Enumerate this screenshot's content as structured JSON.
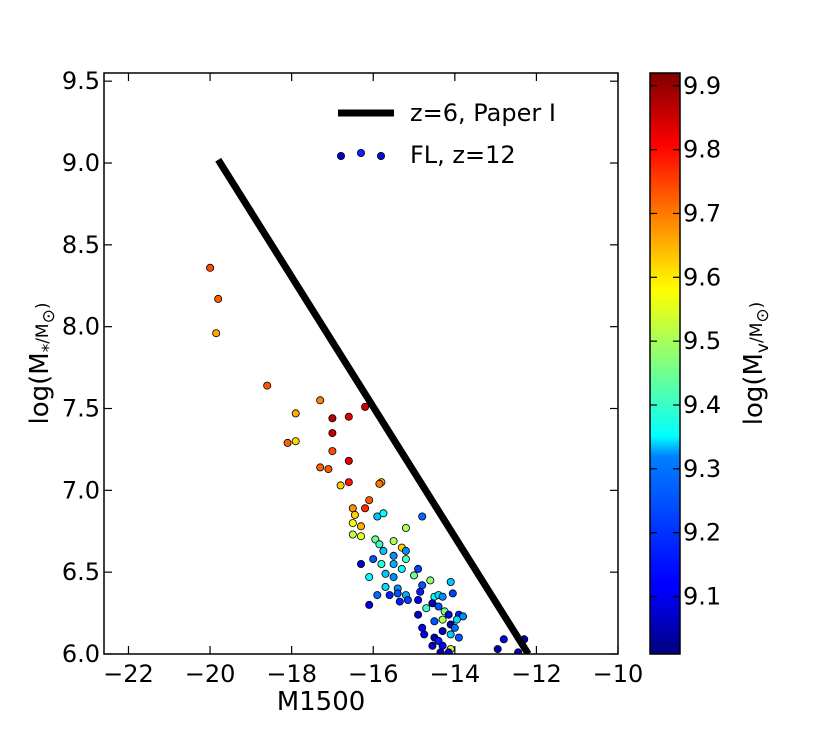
{
  "chart_data": {
    "type": "scatter",
    "xlabel": "M1500",
    "ylabel": "log(M",
    "ylabel_sub": "*",
    "ylabel_rest": "/M",
    "ylabel_sub2": "⊙",
    "ylabel_end": ")",
    "xlim": [
      -22.6,
      -10
    ],
    "ylim": [
      6.0,
      9.55
    ],
    "xticks": [
      -22,
      -20,
      -18,
      -16,
      -14,
      -12,
      -10
    ],
    "xtick_labels": [
      "−22",
      "−20",
      "−18",
      "−16",
      "−14",
      "−12",
      "−10"
    ],
    "yticks": [
      6.0,
      6.5,
      7.0,
      7.5,
      8.0,
      8.5,
      9.0,
      9.5
    ],
    "ytick_labels": [
      "6.0",
      "6.5",
      "7.0",
      "7.5",
      "8.0",
      "8.5",
      "9.0",
      "9.5"
    ],
    "line_series": {
      "name": "z=6, Paper I",
      "color": "#000000",
      "x": [
        -19.8,
        -12.2
      ],
      "y": [
        9.02,
        6.0
      ]
    },
    "scatter_series": {
      "name": "FL, z=12",
      "points": [
        [
          -20.0,
          8.36,
          9.74
        ],
        [
          -19.8,
          8.17,
          9.72
        ],
        [
          -19.85,
          7.96,
          9.66
        ],
        [
          -18.6,
          7.64,
          9.73
        ],
        [
          -17.9,
          7.47,
          9.65
        ],
        [
          -17.3,
          7.55,
          9.69
        ],
        [
          -18.1,
          7.29,
          9.72
        ],
        [
          -17.9,
          7.3,
          9.62
        ],
        [
          -17.0,
          7.44,
          9.87
        ],
        [
          -16.6,
          7.45,
          9.83
        ],
        [
          -16.2,
          7.51,
          9.85
        ],
        [
          -17.0,
          7.35,
          9.86
        ],
        [
          -17.0,
          7.24,
          9.74
        ],
        [
          -17.3,
          7.14,
          9.72
        ],
        [
          -17.1,
          7.13,
          9.73
        ],
        [
          -16.6,
          7.18,
          9.83
        ],
        [
          -16.6,
          7.05,
          9.79
        ],
        [
          -16.8,
          7.03,
          9.62
        ],
        [
          -15.8,
          7.05,
          9.66
        ],
        [
          -15.85,
          7.04,
          9.7
        ],
        [
          -16.1,
          6.94,
          9.73
        ],
        [
          -16.2,
          6.89,
          9.77
        ],
        [
          -16.5,
          6.89,
          9.68
        ],
        [
          -16.45,
          6.85,
          9.62
        ],
        [
          -16.5,
          6.8,
          9.58
        ],
        [
          -15.9,
          6.84,
          9.3
        ],
        [
          -15.75,
          6.86,
          9.35
        ],
        [
          -14.8,
          6.84,
          9.22
        ],
        [
          -15.2,
          6.77,
          9.5
        ],
        [
          -16.3,
          6.78,
          9.65
        ],
        [
          -16.5,
          6.73,
          9.52
        ],
        [
          -16.3,
          6.72,
          9.55
        ],
        [
          -15.95,
          6.7,
          9.45
        ],
        [
          -15.5,
          6.69,
          9.5
        ],
        [
          -15.85,
          6.67,
          9.4
        ],
        [
          -15.75,
          6.63,
          9.3
        ],
        [
          -15.3,
          6.65,
          9.62
        ],
        [
          -15.2,
          6.63,
          9.25
        ],
        [
          -16.3,
          6.55,
          9.08
        ],
        [
          -16.0,
          6.58,
          9.2
        ],
        [
          -15.8,
          6.55,
          9.38
        ],
        [
          -15.5,
          6.6,
          9.25
        ],
        [
          -15.2,
          6.58,
          9.42
        ],
        [
          -15.5,
          6.55,
          9.28
        ],
        [
          -15.3,
          6.52,
          9.35
        ],
        [
          -14.9,
          6.52,
          9.18
        ],
        [
          -15.7,
          6.49,
          9.3
        ],
        [
          -16.1,
          6.47,
          9.35
        ],
        [
          -15.5,
          6.47,
          9.25
        ],
        [
          -15.0,
          6.48,
          9.45
        ],
        [
          -14.6,
          6.45,
          9.48
        ],
        [
          -14.8,
          6.42,
          9.2
        ],
        [
          -15.7,
          6.41,
          9.32
        ],
        [
          -15.4,
          6.4,
          9.25
        ],
        [
          -14.1,
          6.44,
          9.3
        ],
        [
          -15.9,
          6.36,
          9.22
        ],
        [
          -15.6,
          6.36,
          9.15
        ],
        [
          -15.4,
          6.37,
          9.2
        ],
        [
          -15.2,
          6.36,
          9.28
        ],
        [
          -14.5,
          6.35,
          9.35
        ],
        [
          -14.4,
          6.36,
          9.32
        ],
        [
          -14.9,
          6.33,
          9.12
        ],
        [
          -14.3,
          6.35,
          9.25
        ],
        [
          -14.05,
          6.37,
          9.18
        ],
        [
          -14.85,
          6.38,
          9.15
        ],
        [
          -16.1,
          6.3,
          9.1
        ],
        [
          -15.35,
          6.32,
          9.15
        ],
        [
          -15.15,
          6.33,
          9.18
        ],
        [
          -14.55,
          6.31,
          9.05
        ],
        [
          -14.7,
          6.28,
          9.4
        ],
        [
          -14.4,
          6.29,
          9.2
        ],
        [
          -14.25,
          6.26,
          9.45
        ],
        [
          -13.9,
          6.24,
          9.15
        ],
        [
          -14.15,
          6.24,
          9.1
        ],
        [
          -13.8,
          6.23,
          9.25
        ],
        [
          -14.9,
          6.24,
          9.08
        ],
        [
          -13.95,
          6.21,
          9.32
        ],
        [
          -14.3,
          6.21,
          9.5
        ],
        [
          -14.5,
          6.2,
          9.2
        ],
        [
          -14.1,
          6.18,
          9.05
        ],
        [
          -14.8,
          6.16,
          9.12
        ],
        [
          -14.0,
          6.16,
          9.22
        ],
        [
          -14.3,
          6.14,
          9.06
        ],
        [
          -14.1,
          6.12,
          9.3
        ],
        [
          -14.75,
          6.12,
          9.1
        ],
        [
          -14.5,
          6.1,
          9.05
        ],
        [
          -13.9,
          6.1,
          9.2
        ],
        [
          -14.4,
          6.08,
          9.15
        ],
        [
          -14.55,
          6.05,
          9.08
        ],
        [
          -14.3,
          6.05,
          9.12
        ],
        [
          -12.8,
          6.09,
          9.1
        ],
        [
          -12.3,
          6.09,
          9.05
        ],
        [
          -14.1,
          6.03,
          9.55
        ],
        [
          -12.95,
          6.03,
          9.05
        ],
        [
          -12.45,
          6.01,
          9.08
        ],
        [
          -14.15,
          6.01,
          9.1
        ],
        [
          -14.35,
          6.01,
          9.06
        ]
      ]
    },
    "legend": {
      "location": "top-right",
      "entries": [
        "z=6, Paper I",
        "FL, z=12"
      ]
    },
    "colorbar": {
      "label": "log(M",
      "label_sub": "v",
      "label_rest": "/M",
      "label_sub2": "⊙",
      "label_end": ")",
      "range": [
        9.01,
        9.92
      ],
      "ticks": [
        9.1,
        9.2,
        9.3,
        9.4,
        9.5,
        9.6,
        9.7,
        9.8,
        9.9
      ],
      "tick_labels": [
        "9.1",
        "9.2",
        "9.3",
        "9.4",
        "9.5",
        "9.6",
        "9.7",
        "9.8",
        "9.9"
      ],
      "colormap": "jet"
    }
  }
}
